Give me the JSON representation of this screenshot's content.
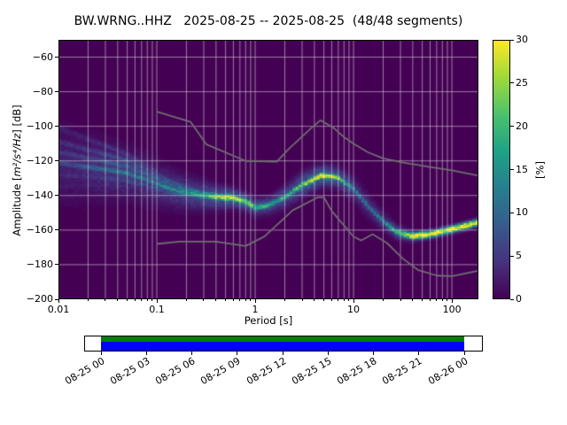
{
  "title": "BW.WRNG..HHZ   2025-08-25 -- 2025-08-25  (48/48 segments)",
  "axes": {
    "xlabel": "Period [s]",
    "ylabel": {
      "prefix": "Amplitude [",
      "math": "m²/s⁴/Hz",
      "suffix": "] [dB]"
    },
    "xlim": [
      0.01,
      186
    ],
    "ylim": [
      -200,
      -50
    ],
    "xticks": [
      {
        "v": 0.01,
        "label": "0.01"
      },
      {
        "v": 0.1,
        "label": "0.1"
      },
      {
        "v": 1,
        "label": "1"
      },
      {
        "v": 10,
        "label": "10"
      },
      {
        "v": 100,
        "label": "100"
      }
    ],
    "yticks": [
      {
        "v": -60,
        "label": "−60"
      },
      {
        "v": -80,
        "label": "−80"
      },
      {
        "v": -100,
        "label": "−100"
      },
      {
        "v": -120,
        "label": "−120"
      },
      {
        "v": -140,
        "label": "−140"
      },
      {
        "v": -160,
        "label": "−160"
      },
      {
        "v": -180,
        "label": "−180"
      },
      {
        "v": -200,
        "label": "−200"
      }
    ]
  },
  "colorbar": {
    "label": "[%]",
    "min": 0,
    "max": 30,
    "ticks": [
      {
        "v": 0,
        "label": "0"
      },
      {
        "v": 5,
        "label": "5"
      },
      {
        "v": 10,
        "label": "10"
      },
      {
        "v": 15,
        "label": "15"
      },
      {
        "v": 20,
        "label": "20"
      },
      {
        "v": 25,
        "label": "25"
      },
      {
        "v": 30,
        "label": "30"
      }
    ],
    "viridis_stops": [
      [
        0,
        "#440154"
      ],
      [
        0.14,
        "#46327e"
      ],
      [
        0.29,
        "#365c8d"
      ],
      [
        0.43,
        "#277f8e"
      ],
      [
        0.57,
        "#1fa187"
      ],
      [
        0.71,
        "#4ac16d"
      ],
      [
        0.86,
        "#a0da39"
      ],
      [
        1,
        "#fde725"
      ]
    ]
  },
  "colors": {
    "background": "#ffffff",
    "grid": "rgba(235,235,235,0.75)",
    "noise_model_line": "#6f6f6f",
    "coverage_green": "#008000",
    "coverage_blue": "#0000ff",
    "text": "#000000"
  },
  "timeline": {
    "tick_labels": [
      "08-25 00",
      "08-25 03",
      "08-25 06",
      "08-25 09",
      "08-25 12",
      "08-25 15",
      "08-25 18",
      "08-25 21",
      "08-26 00"
    ]
  },
  "chart_data": {
    "type": "heatmap",
    "title": "BW.WRNG..HHZ   2025-08-25 -- 2025-08-25  (48/48 segments)",
    "xlabel": "Period [s]",
    "ylabel": "Amplitude [m²/s⁴/Hz] [dB]",
    "xscale": "log",
    "xlim": [
      0.01,
      186
    ],
    "ylim": [
      -200,
      -50
    ],
    "grid": true,
    "legend_position": "colorbar-right",
    "colorbar_label": "[%]",
    "probability_range_percent": [
      0,
      30
    ],
    "psd_mode_curve": {
      "periods_s": [
        0.01,
        0.017,
        0.03,
        0.05,
        0.08,
        0.12,
        0.18,
        0.28,
        0.42,
        0.6,
        0.8,
        1.0,
        1.4,
        2.0,
        3.0,
        4.7,
        6.8,
        10,
        14,
        20,
        28,
        40,
        60,
        100,
        150,
        186
      ],
      "mode_db": [
        -121,
        -123,
        -125,
        -127,
        -131,
        -135,
        -138,
        -140,
        -141,
        -141.5,
        -143.5,
        -147,
        -145.5,
        -141,
        -134,
        -128.5,
        -129.5,
        -136,
        -146,
        -155,
        -161.5,
        -163.5,
        -162.5,
        -159.5,
        -157,
        -155.5
      ],
      "peak_percent": [
        7,
        8,
        11,
        13,
        12,
        13,
        15,
        18,
        24,
        30,
        27,
        20,
        18,
        18,
        23,
        30,
        24,
        13,
        11,
        13,
        22,
        30,
        30,
        30,
        30,
        30
      ],
      "spread_db": [
        13,
        12,
        10,
        8.5,
        8,
        7,
        6,
        5,
        4,
        3.2,
        3,
        3,
        3.2,
        4,
        4.2,
        3.6,
        3.6,
        4.2,
        4.2,
        3.4,
        2.4,
        1.8,
        1.6,
        1.5,
        1.5,
        1.5
      ]
    },
    "scatter_branches": [
      {
        "offset_db": 20,
        "amp": 0.35,
        "p_max": 0.3
      },
      {
        "offset_db": 12,
        "amp": 0.55,
        "p_max": 0.5
      },
      {
        "offset_db": 6,
        "amp": 0.7,
        "p_max": 0.7
      },
      {
        "offset_db": -7,
        "amp": 0.5,
        "p_max": 0.45
      },
      {
        "offset_db": -14,
        "amp": 0.3,
        "p_max": 0.2
      },
      {
        "offset_db": -21,
        "amp": 0.18,
        "p_max": 0.12
      }
    ],
    "noise_models": {
      "nhnm": {
        "periods_s": [
          0.1,
          0.22,
          0.32,
          0.8,
          1.66,
          2.2,
          3.8,
          4.6,
          6.3,
          7.9,
          10,
          14,
          20,
          32,
          60,
          100,
          186
        ],
        "db": [
          -91.5,
          -97.4,
          -110.5,
          -120,
          -120.5,
          -113,
          -100.5,
          -96.5,
          -101,
          -106,
          -110,
          -115,
          -118.5,
          -121,
          -123.5,
          -125.5,
          -128.5
        ]
      },
      "nlnm": {
        "periods_s": [
          0.1,
          0.17,
          0.4,
          0.8,
          1.24,
          2.4,
          4.3,
          5,
          6,
          10,
          12,
          15.6,
          21.9,
          31.6,
          45,
          70,
          101,
          154,
          186
        ],
        "db": [
          -168,
          -166.7,
          -166.7,
          -169.2,
          -163.7,
          -148.6,
          -141.1,
          -141.1,
          -149,
          -163.8,
          -166,
          -162.4,
          -167.5,
          -176.4,
          -183,
          -186.3,
          -186.6,
          -184.4,
          -183.5
        ]
      }
    }
  }
}
